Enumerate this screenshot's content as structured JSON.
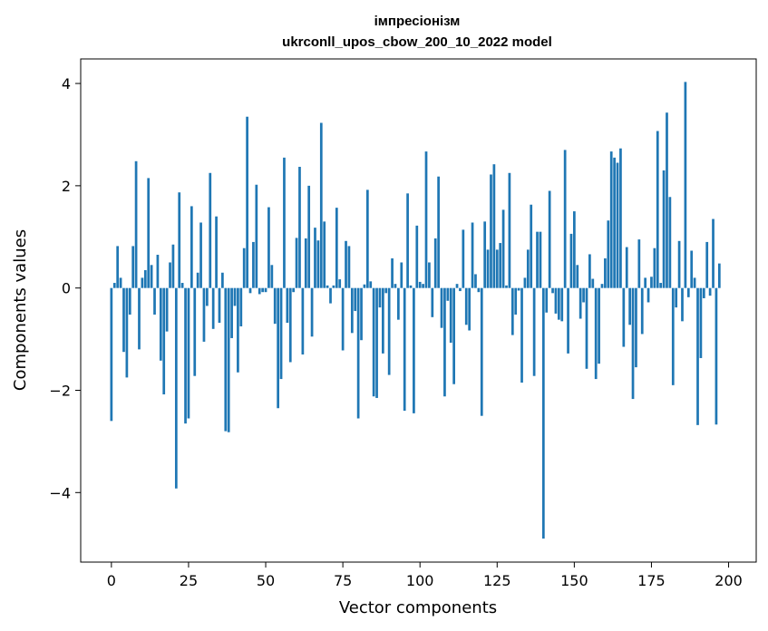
{
  "chart_data": {
    "type": "bar",
    "title": "імпресіонізм",
    "subtitle": "ukrconll_upos_cbow_200_10_2022 model",
    "xlabel": "Vector components",
    "ylabel": "Components values",
    "xlim": [
      -9.95,
      208.95
    ],
    "ylim": [
      -5.36,
      4.48
    ],
    "xticks": [
      0,
      25,
      50,
      75,
      100,
      125,
      150,
      175,
      200
    ],
    "yticks": [
      -4,
      -2,
      0,
      2,
      4
    ],
    "ytick_labels": [
      "−4",
      "−2",
      "0",
      "2",
      "4"
    ],
    "bar_color": "#1f77b4",
    "grid": false,
    "values": [
      -2.6,
      0.1,
      0.82,
      0.2,
      -1.25,
      -1.75,
      -0.52,
      0.82,
      2.48,
      -1.2,
      0.2,
      0.35,
      2.15,
      0.45,
      -0.52,
      0.65,
      -1.42,
      -2.08,
      -0.85,
      0.5,
      0.85,
      -3.92,
      1.87,
      0.1,
      -2.65,
      -2.55,
      1.6,
      -1.72,
      0.3,
      1.28,
      -1.05,
      -0.35,
      2.25,
      -0.8,
      1.4,
      -0.68,
      0.3,
      -2.8,
      -2.82,
      -0.98,
      -0.35,
      -1.65,
      -0.75,
      0.78,
      3.35,
      -0.1,
      0.9,
      2.02,
      -0.12,
      -0.08,
      -0.08,
      1.58,
      0.45,
      -0.7,
      -2.35,
      -1.78,
      2.55,
      -0.68,
      -1.45,
      -0.08,
      0.98,
      2.37,
      -1.3,
      0.97,
      2.0,
      -0.95,
      1.18,
      0.93,
      3.23,
      1.3,
      0.05,
      -0.3,
      0.05,
      1.57,
      0.17,
      -1.22,
      0.92,
      0.82,
      -0.88,
      -0.45,
      -2.55,
      -1.02,
      0.07,
      1.92,
      0.13,
      -2.12,
      -2.15,
      -0.38,
      -1.28,
      -0.1,
      -1.7,
      0.58,
      0.08,
      -0.62,
      0.5,
      -2.4,
      1.85,
      0.05,
      -2.45,
      1.22,
      0.12,
      0.08,
      2.67,
      0.5,
      -0.57,
      0.97,
      2.18,
      -0.78,
      -2.12,
      -0.25,
      -1.07,
      -1.88,
      0.08,
      -0.06,
      1.14,
      -0.72,
      -0.83,
      1.28,
      0.27,
      -0.08,
      -2.5,
      1.3,
      0.75,
      2.22,
      2.42,
      0.75,
      0.88,
      1.53,
      0.05,
      2.25,
      -0.92,
      -0.52,
      -0.05,
      -1.85,
      0.2,
      0.75,
      1.63,
      -1.72,
      1.1,
      1.1,
      -4.9,
      -0.48,
      1.9,
      -0.1,
      -0.5,
      -0.62,
      -0.65,
      2.7,
      -1.28,
      1.06,
      1.5,
      0.45,
      -0.6,
      -0.28,
      -1.58,
      0.66,
      0.18,
      -1.78,
      -1.48,
      0.08,
      0.58,
      1.32,
      2.67,
      2.55,
      2.45,
      2.73,
      -1.15,
      0.8,
      -0.72,
      -2.17,
      -1.55,
      0.95,
      -0.9,
      0.2,
      -0.28,
      0.22,
      0.78,
      3.07,
      0.1,
      2.3,
      3.43,
      1.78,
      -1.9,
      -0.38,
      0.92,
      -0.65,
      4.03,
      -0.18,
      0.73,
      0.2,
      -2.68,
      -1.37,
      -0.2,
      0.9,
      -0.15,
      1.35,
      -2.67,
      0.48
    ]
  }
}
